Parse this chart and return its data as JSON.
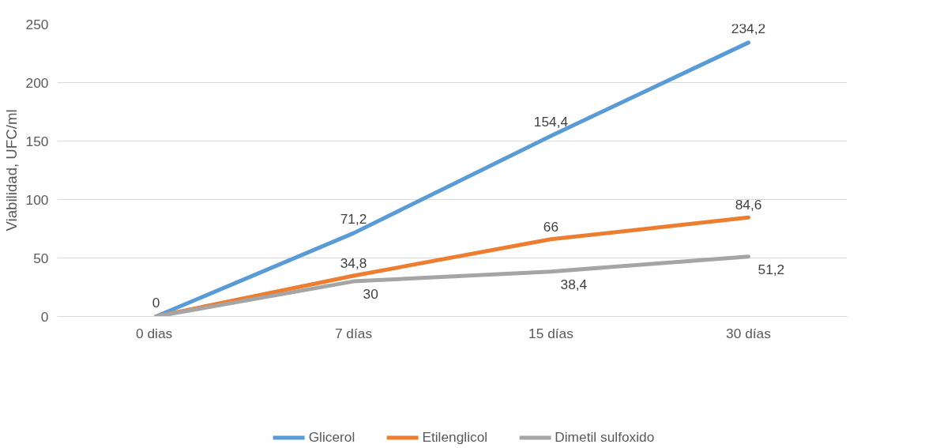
{
  "chart_data": {
    "type": "line",
    "ylabel": "Viabilidad, UFC/ml",
    "categories": [
      "0  dias",
      "7 días",
      "15 días",
      "30 días"
    ],
    "series": [
      {
        "name": "Glicerol",
        "color": "#5b9bd5",
        "values": [
          0,
          71.2,
          154.4,
          234.2
        ],
        "value_labels": [
          "0",
          "71,2",
          "154,4",
          "234,2"
        ]
      },
      {
        "name": "Etilenglicol",
        "color": "#ed7d31",
        "values": [
          0,
          34.8,
          66,
          84.6
        ],
        "value_labels": [
          null,
          "34,8",
          "66",
          "84,6"
        ]
      },
      {
        "name": "Dimetil sulfoxido",
        "color": "#a5a5a5",
        "values": [
          0,
          30,
          38.4,
          51.2
        ],
        "value_labels": [
          null,
          "30",
          "38,4",
          "51,2"
        ]
      }
    ],
    "ylim": [
      0,
      250
    ],
    "yticks": [
      0,
      50,
      100,
      150,
      200,
      250
    ],
    "grid": "y",
    "legend": "bottom",
    "marker": "none",
    "line_style": "solid"
  }
}
